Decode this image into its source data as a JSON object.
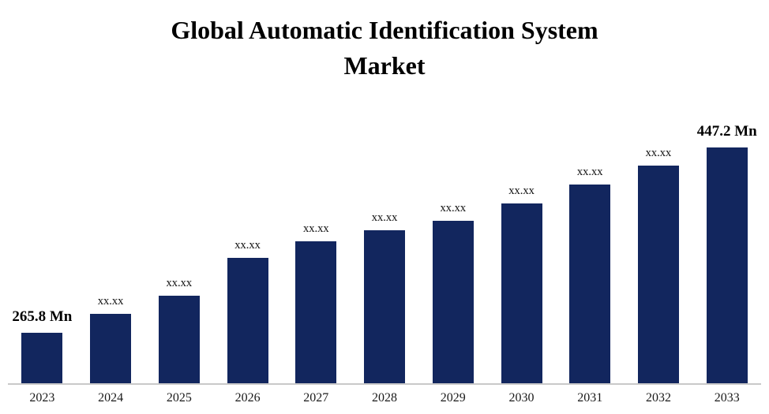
{
  "title_line1": "Global Automatic Identification System",
  "title_line2": "Market",
  "chart_data": {
    "type": "bar",
    "title": "Global Automatic Identification System Market",
    "unit": "Mn",
    "bar_color": "#12265E",
    "axis": {
      "x_axis_line_color": "#c9c9c9",
      "y_axis_visible": false,
      "baseline_value": 216,
      "top_value": 475,
      "gridlines": false,
      "legend": "none"
    },
    "bars": [
      {
        "category": "2023",
        "label": "265.8 Mn",
        "value": 265.8,
        "emphasis": true
      },
      {
        "category": "2024",
        "label": "xx.xx",
        "value": 284,
        "emphasis": false
      },
      {
        "category": "2025",
        "label": "xx.xx",
        "value": 302,
        "emphasis": false
      },
      {
        "category": "2026",
        "label": "xx.xx",
        "value": 339,
        "emphasis": false
      },
      {
        "category": "2027",
        "label": "xx.xx",
        "value": 355,
        "emphasis": false
      },
      {
        "category": "2028",
        "label": "xx.xx",
        "value": 366,
        "emphasis": false
      },
      {
        "category": "2029",
        "label": "xx.xx",
        "value": 375,
        "emphasis": false
      },
      {
        "category": "2030",
        "label": "xx.xx",
        "value": 392,
        "emphasis": false
      },
      {
        "category": "2031",
        "label": "xx.xx",
        "value": 411,
        "emphasis": false
      },
      {
        "category": "2032",
        "label": "xx.xx",
        "value": 429,
        "emphasis": false
      },
      {
        "category": "2033",
        "label": "447.2 Mn",
        "value": 447.2,
        "emphasis": true
      }
    ]
  }
}
